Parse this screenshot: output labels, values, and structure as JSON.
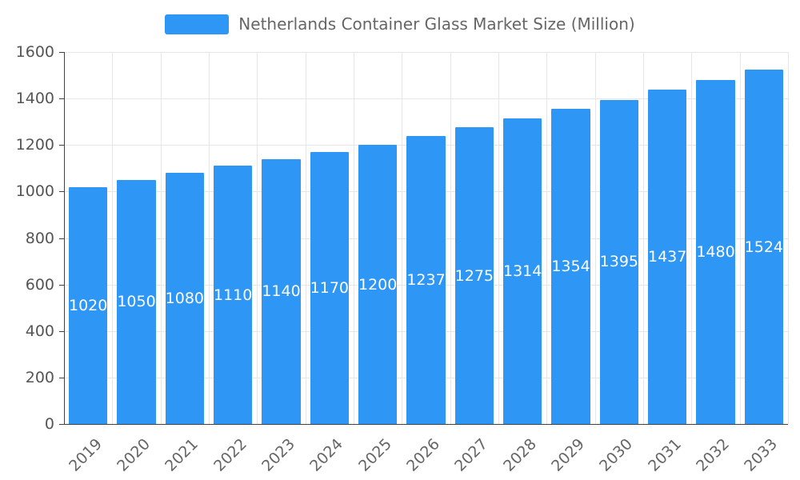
{
  "legend": {
    "label": "Netherlands Container Glass Market Size (Million)",
    "swatch_color": "#2E96F5"
  },
  "chart_data": {
    "type": "bar",
    "title": "Netherlands Container Glass Market Size (Million)",
    "categories": [
      "2019",
      "2020",
      "2021",
      "2022",
      "2023",
      "2024",
      "2025",
      "2026",
      "2027",
      "2028",
      "2029",
      "2030",
      "2031",
      "2032",
      "2033"
    ],
    "values": [
      1020,
      1050,
      1080,
      1110,
      1140,
      1170,
      1200,
      1237,
      1275,
      1314,
      1354,
      1395,
      1437,
      1480,
      1524
    ],
    "xlabel": "",
    "ylabel": "",
    "ylim": [
      0,
      1600
    ],
    "ytick_step": 200,
    "grid": true,
    "xlabel_rotation": -45,
    "legend_position": "top",
    "bar_color": "#2E96F5",
    "value_label_color": "#ffffff"
  }
}
